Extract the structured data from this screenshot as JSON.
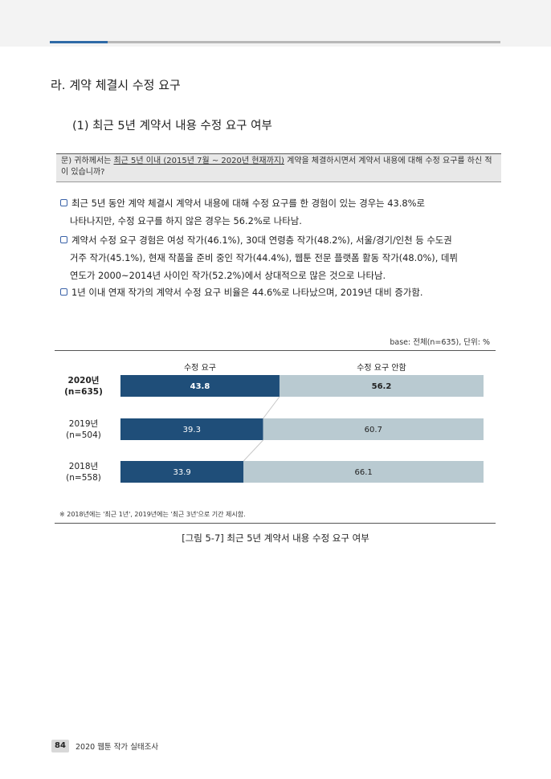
{
  "header": {
    "accent_color": "#2e6aa6"
  },
  "section": {
    "title": "라. 계약 체결시 수정 요구",
    "subtitle": "(1) 최근 5년 계약서 내용 수정 요구 여부"
  },
  "question": {
    "prefix": "문) 귀하께서는 ",
    "underlined": "최근 5년 이내 (2015년 7월 ~ 2020년 현재까지)",
    "rest": " 계약을 체결하시면서 계약서 내용에 대해 수정 요구를 하신 적이 있습니까?"
  },
  "bullets": [
    {
      "line1": "최근 5년 동안 계약 체결시 계약서 내용에 대해 수정 요구를 한 경험이 있는 경우는 43.8%로",
      "line2": "나타나지만, 수정 요구를 하지 않은 경우는 56.2%로 나타남."
    },
    {
      "line1": "계약서 수정 요구 경험은 여성 작가(46.1%), 30대 연령층 작가(48.2%), 서울/경기/인천 등 수도권",
      "line2": "거주 작가(45.1%), 현재 작품을 준비 중인 작가(44.4%), 웹툰 전문 플랫폼 활동 작가(48.0%), 데뷔",
      "line3": "연도가 2000~2014년 사이인 작가(52.2%)에서 상대적으로 많은 것으로 나타남."
    },
    {
      "line1": "1년 이내 연재 작가의 계약서 수정 요구 비율은 44.6%로 나타났으며, 2019년 대비 증가함."
    }
  ],
  "base_text": "base: 전체(n=635), 단위: %",
  "chart_data": {
    "type": "bar",
    "stacked": true,
    "orientation": "horizontal",
    "categories": [
      {
        "name": "2020년",
        "n": "(n=635)",
        "bold": true
      },
      {
        "name": "2019년",
        "n": "(n=504)",
        "bold": false
      },
      {
        "name": "2018년",
        "n": "(n=558)",
        "bold": false
      }
    ],
    "series": [
      {
        "name": "수정 요구",
        "values": [
          43.8,
          39.3,
          33.9
        ],
        "color": "#1f4e79"
      },
      {
        "name": "수정 요구 안함",
        "values": [
          56.2,
          60.7,
          66.1
        ],
        "color": "#b9cad1"
      }
    ],
    "xlim": [
      0,
      100
    ],
    "legend": "top"
  },
  "note": "※ 2018년에는 '최근 1년', 2019년에는 '최근 3년'으로 기간 제시함.",
  "caption": "[그림 5-7] 최근 5년 계약서 내용 수정 요구 여부",
  "footer": {
    "page_number": "84",
    "title": "2020 웹툰 작가 실태조사"
  }
}
